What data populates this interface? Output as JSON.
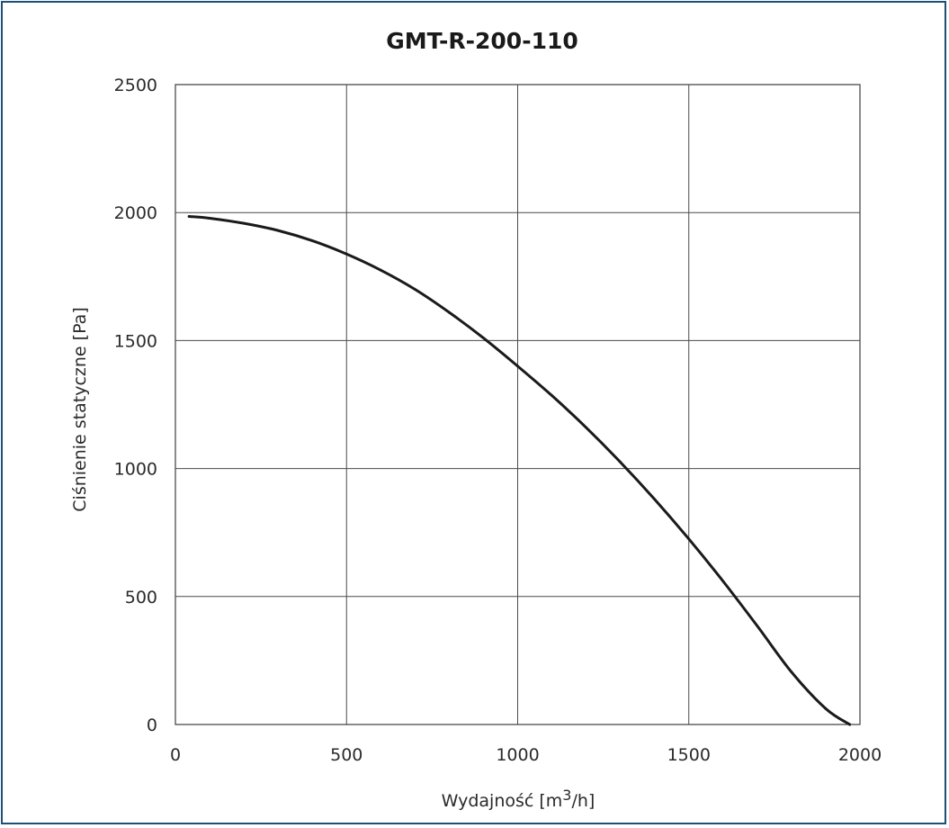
{
  "chart_data": {
    "type": "line",
    "title": "GMT-R-200-110",
    "xlabel_prefix": "Wydajność [m",
    "xlabel_sup": "3",
    "xlabel_suffix": "/h]",
    "ylabel": "Ciśnienie statyczne [Pa]",
    "xlim": [
      0,
      2000
    ],
    "ylim": [
      0,
      2500
    ],
    "xticks": [
      0,
      500,
      1000,
      1500,
      2000
    ],
    "yticks": [
      0,
      500,
      1000,
      1500,
      2000,
      2500
    ],
    "grid": true,
    "legend": "none",
    "colors": {
      "frame": "#1f4f73",
      "grid": "#4a4a4a",
      "curve": "#1a1a1a"
    },
    "series": [
      {
        "x": [
          40,
          100,
          200,
          300,
          400,
          500,
          600,
          700,
          800,
          900,
          1000,
          1100,
          1200,
          1300,
          1400,
          1500,
          1600,
          1700,
          1800,
          1900,
          1970
        ],
        "values": [
          1985,
          1978,
          1958,
          1930,
          1890,
          1838,
          1775,
          1700,
          1610,
          1510,
          1400,
          1285,
          1160,
          1025,
          880,
          725,
          560,
          385,
          205,
          62,
          0
        ]
      }
    ]
  }
}
